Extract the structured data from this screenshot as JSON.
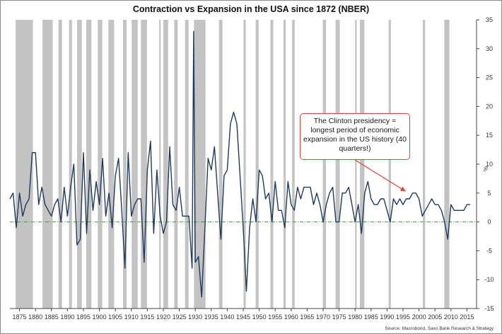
{
  "chart_data": {
    "type": "line",
    "title": "Contraction vs Expansion in the USA since 1872 (NBER)",
    "source": "Source: Macrobond, Saxo Bank Research & Strategy",
    "ylabel": "%",
    "ylim": [
      -15,
      35
    ],
    "xlim": [
      1872,
      2018
    ],
    "y_ticks": [
      35,
      30,
      25,
      20,
      15,
      10,
      5,
      0,
      -5,
      -10,
      -15
    ],
    "y_tick_labels": [
      "35",
      "30",
      "25",
      "20",
      "15",
      "10",
      "5",
      "0",
      "-5",
      "-10",
      "-15"
    ],
    "x_ticks": [
      1875,
      1880,
      1885,
      1890,
      1895,
      1900,
      1905,
      1910,
      1915,
      1920,
      1925,
      1930,
      1935,
      1940,
      1945,
      1950,
      1955,
      1960,
      1965,
      1970,
      1975,
      1980,
      1985,
      1990,
      1995,
      2000,
      2005,
      2010,
      2015
    ],
    "x_tick_labels": [
      "1875",
      "1880",
      "1885",
      "1890",
      "1895",
      "1900",
      "1905",
      "1910",
      "1915",
      "1920",
      "1925",
      "1930",
      "1935",
      "1940",
      "1945",
      "1950",
      "1955",
      "1960",
      "1965",
      "1970",
      "1975",
      "1980",
      "1985",
      "1990",
      "1995",
      "2000",
      "2005",
      "2010",
      "2015"
    ],
    "recessions": [
      [
        1873.8,
        1879.2
      ],
      [
        1882.2,
        1885.4
      ],
      [
        1887.2,
        1888.3
      ],
      [
        1890.5,
        1891.4
      ],
      [
        1893.0,
        1894.5
      ],
      [
        1895.9,
        1897.5
      ],
      [
        1899.5,
        1900.9
      ],
      [
        1902.8,
        1904.6
      ],
      [
        1907.4,
        1908.5
      ],
      [
        1910.1,
        1912.0
      ],
      [
        1913.0,
        1914.9
      ],
      [
        1918.7,
        1919.2
      ],
      [
        1920.0,
        1921.5
      ],
      [
        1923.4,
        1924.5
      ],
      [
        1926.8,
        1927.9
      ],
      [
        1929.6,
        1933.2
      ],
      [
        1937.4,
        1938.5
      ],
      [
        1945.1,
        1945.8
      ],
      [
        1948.9,
        1949.8
      ],
      [
        1953.5,
        1954.4
      ],
      [
        1957.6,
        1958.3
      ],
      [
        1960.3,
        1961.1
      ],
      [
        1969.9,
        1970.9
      ],
      [
        1973.9,
        1975.2
      ],
      [
        1980.0,
        1980.5
      ],
      [
        1981.5,
        1982.9
      ],
      [
        1990.5,
        1991.2
      ],
      [
        2001.2,
        2001.9
      ],
      [
        2007.9,
        2009.5
      ]
    ],
    "series": [
      {
        "color": "#1f3a5f",
        "x": [
          1872,
          1873,
          1874,
          1875,
          1876,
          1877,
          1878,
          1879,
          1880,
          1881,
          1882,
          1883,
          1884,
          1885,
          1886,
          1887,
          1888,
          1889,
          1890,
          1891,
          1892,
          1893,
          1894,
          1895,
          1896,
          1897,
          1898,
          1899,
          1900,
          1901,
          1902,
          1903,
          1904,
          1905,
          1906,
          1907,
          1908,
          1909,
          1910,
          1911,
          1912,
          1913,
          1914,
          1915,
          1916,
          1917,
          1918,
          1919,
          1920,
          1921,
          1922,
          1923,
          1924,
          1925,
          1926,
          1927,
          1928,
          1929,
          1929.5,
          1930,
          1931,
          1932,
          1933,
          1934,
          1935,
          1936,
          1937,
          1938,
          1939,
          1940,
          1941,
          1942,
          1943,
          1944,
          1945,
          1946,
          1947,
          1948,
          1949,
          1950,
          1951,
          1952,
          1953,
          1954,
          1955,
          1956,
          1957,
          1958,
          1959,
          1960,
          1961,
          1962,
          1963,
          1964,
          1965,
          1966,
          1967,
          1968,
          1969,
          1970,
          1971,
          1972,
          1973,
          1974,
          1975,
          1976,
          1977,
          1978,
          1979,
          1980,
          1981,
          1982,
          1983,
          1984,
          1985,
          1986,
          1987,
          1988,
          1989,
          1990,
          1991,
          1992,
          1993,
          1994,
          1995,
          1996,
          1997,
          1998,
          1999,
          2000,
          2001,
          2002,
          2003,
          2004,
          2005,
          2006,
          2007,
          2008,
          2009,
          2010,
          2011,
          2012,
          2013,
          2014,
          2015,
          2016
        ],
        "y": [
          4,
          5,
          -1,
          5,
          1,
          3,
          4,
          12,
          12,
          3,
          6,
          3,
          2,
          1,
          3,
          4,
          0,
          6,
          1,
          6,
          10,
          -4,
          -3,
          12,
          -2,
          9,
          2,
          7,
          3,
          11,
          1,
          5,
          -1,
          8,
          11,
          2,
          -8,
          12,
          1,
          3,
          4,
          4,
          -7,
          9,
          14,
          -2,
          9,
          1,
          -2,
          0,
          13,
          3,
          2,
          6,
          1,
          1,
          1,
          -8,
          33,
          -7,
          -6,
          -13,
          -1,
          11,
          9,
          13,
          5,
          -3,
          8,
          9,
          17,
          19,
          17,
          8,
          -1,
          -12,
          -1,
          4,
          0,
          9,
          8,
          4,
          5,
          0,
          7,
          2,
          2,
          -1,
          7,
          3,
          2,
          6,
          4,
          6,
          6,
          6,
          3,
          5,
          3,
          0,
          3,
          5,
          6,
          0,
          0,
          5,
          5,
          6,
          3,
          0,
          3,
          -2,
          5,
          7,
          4,
          3,
          3,
          4,
          4,
          2,
          0,
          4,
          3,
          4,
          3,
          4,
          4,
          5,
          5,
          4,
          1,
          2,
          3,
          4,
          3,
          3,
          2,
          0,
          -3,
          3,
          2,
          2,
          2,
          2,
          3,
          3
        ]
      }
    ],
    "annotation": "The Clinton presidency = longest period of economic expansion in the US history (40 quarters!)",
    "grid": false,
    "zero_line": {
      "style": "dash-dot",
      "color": "#3f9a3f"
    }
  }
}
